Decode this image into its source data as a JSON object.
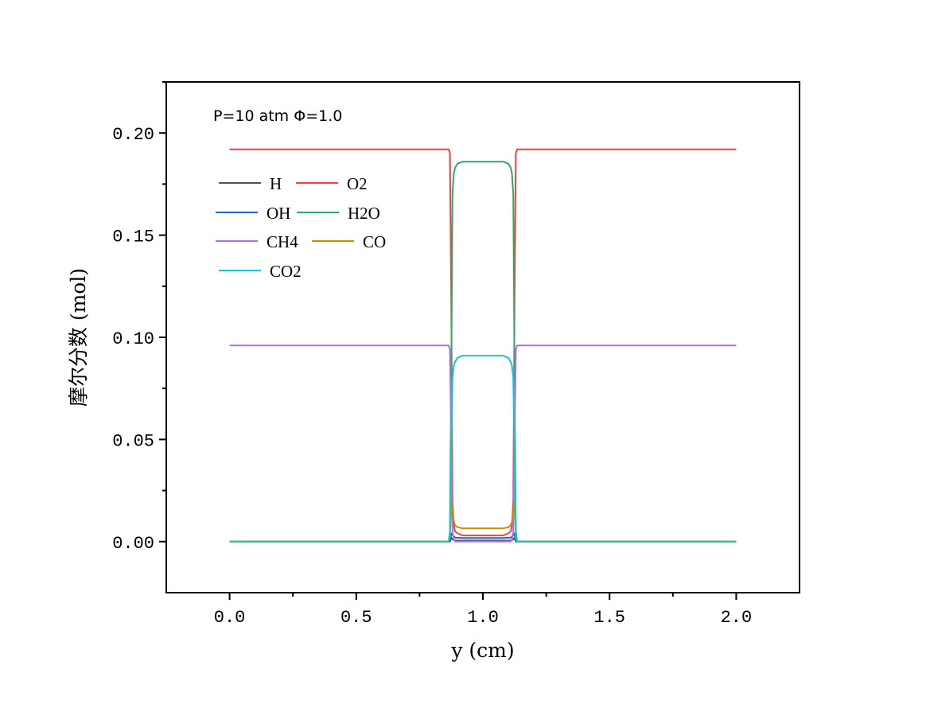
{
  "chart_data": {
    "type": "line",
    "title": "",
    "annotation": "P=10 atm  Φ=1.0",
    "xlabel": "y (cm)",
    "ylabel": "摩尔分数 (mol)",
    "xlim": [
      -0.25,
      2.25
    ],
    "ylim": [
      -0.025,
      0.225
    ],
    "xticks": [
      0.0,
      0.5,
      1.0,
      1.5,
      2.0
    ],
    "xtick_labels": [
      "0.0",
      "0.5",
      "1.0",
      "1.5",
      "2.0"
    ],
    "yticks": [
      0.0,
      0.05,
      0.1,
      0.15,
      0.2
    ],
    "ytick_labels": [
      "0.00",
      "0.05",
      "0.10",
      "0.15",
      "0.20"
    ],
    "grid": false,
    "legend_position": "top-left",
    "x": [
      0,
      0.865,
      0.87,
      0.875,
      0.88,
      0.885,
      0.89,
      0.9,
      0.92,
      1.0,
      1.08,
      1.1,
      1.11,
      1.115,
      1.12,
      1.125,
      1.13,
      1.135,
      2.0
    ],
    "series": [
      {
        "name": "H",
        "color": "#555555",
        "values": [
          0,
          0,
          0,
          0.002,
          0.001,
          0.0008,
          0.0006,
          0.0005,
          0.0005,
          0.0005,
          0.0005,
          0.0005,
          0.0006,
          0.0008,
          0.001,
          0.002,
          0,
          0,
          0
        ]
      },
      {
        "name": "O2",
        "color": "#f04040",
        "values": [
          0.192,
          0.192,
          0.19,
          0.12,
          0.02,
          0.008,
          0.005,
          0.004,
          0.003,
          0.003,
          0.003,
          0.004,
          0.005,
          0.008,
          0.02,
          0.12,
          0.19,
          0.192,
          0.192
        ]
      },
      {
        "name": "OH",
        "color": "#2060d0",
        "values": [
          0,
          0,
          0,
          0.004,
          0.003,
          0.0025,
          0.002,
          0.0019,
          0.0018,
          0.0018,
          0.0018,
          0.0019,
          0.002,
          0.0025,
          0.003,
          0.004,
          0,
          0,
          0
        ]
      },
      {
        "name": "H2O",
        "color": "#30a868",
        "values": [
          0,
          0,
          0.005,
          0.08,
          0.17,
          0.18,
          0.183,
          0.185,
          0.186,
          0.186,
          0.186,
          0.185,
          0.183,
          0.18,
          0.17,
          0.08,
          0.005,
          0,
          0
        ]
      },
      {
        "name": "CH4",
        "color": "#b070e0",
        "values": [
          0.096,
          0.096,
          0.094,
          0.05,
          0.005,
          0.001,
          0,
          0,
          0,
          0,
          0,
          0,
          0,
          0.001,
          0.005,
          0.05,
          0.094,
          0.096,
          0.096
        ]
      },
      {
        "name": "CO",
        "color": "#c89000",
        "values": [
          0,
          0,
          0.002,
          0.02,
          0.014,
          0.01,
          0.008,
          0.007,
          0.0065,
          0.0065,
          0.0065,
          0.007,
          0.008,
          0.01,
          0.014,
          0.02,
          0.002,
          0,
          0
        ]
      },
      {
        "name": "CO2",
        "color": "#10c8d0",
        "values": [
          0,
          0,
          0.002,
          0.04,
          0.08,
          0.086,
          0.088,
          0.09,
          0.091,
          0.091,
          0.091,
          0.09,
          0.088,
          0.086,
          0.08,
          0.04,
          0.002,
          0,
          0
        ]
      }
    ]
  }
}
